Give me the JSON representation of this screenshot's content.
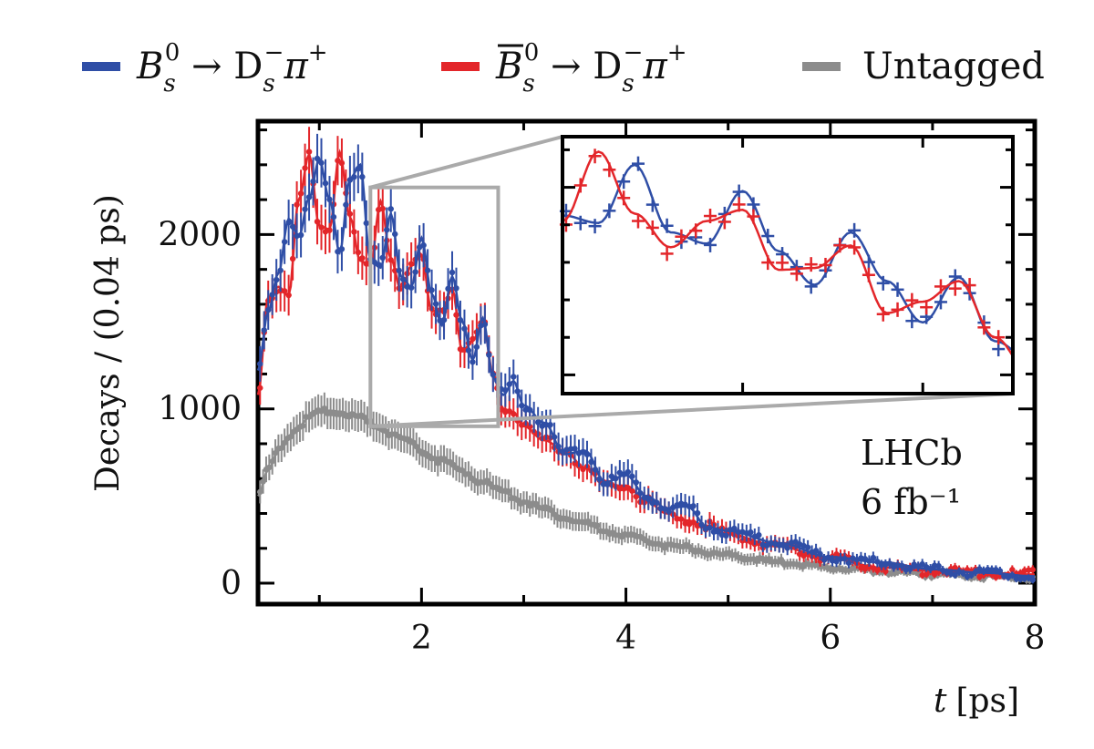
{
  "chart_data": {
    "type": "scatter",
    "xlabel_var": "t",
    "xlabel_unit": "[ps]",
    "ylabel": "Decays / (0.04 ps)",
    "xlim": [
      0.4,
      8
    ],
    "ylim": [
      -120,
      2650
    ],
    "x_ticks": [
      2,
      4,
      6,
      8
    ],
    "y_ticks": [
      0,
      1000,
      2000
    ],
    "grid": false,
    "legend_placement": "top",
    "legend": [
      {
        "key": "bs",
        "label": "B_s^0 → D_s^- π^+",
        "color": "#2F4EA6"
      },
      {
        "key": "bsbar",
        "label": "B̄_s^0 → D_s^- π^+",
        "color": "#E3262A"
      },
      {
        "key": "untagged",
        "label": "Untagged",
        "color": "#8C8C8C"
      }
    ],
    "annotations": {
      "experiment": "LHCb",
      "luminosity": "6 fb⁻¹"
    },
    "inset": {
      "zoom_region": {
        "x": [
          1.5,
          2.75
        ],
        "y": [
          900,
          2270
        ]
      },
      "series": [
        "bs",
        "bsbar"
      ]
    },
    "series": [
      {
        "key": "bs",
        "color": "#2F4EA6",
        "kind": "oscillating",
        "x": [
          0.4,
          0.5,
          0.6,
          0.7,
          0.8,
          0.9,
          1.0,
          1.1,
          1.2,
          1.3,
          1.4,
          1.5,
          1.6,
          1.7,
          1.8,
          1.9,
          2.0,
          2.1,
          2.2,
          2.3,
          2.4,
          2.5,
          2.6,
          2.7,
          2.8,
          2.9,
          3.0,
          3.2,
          3.4,
          3.6,
          3.8,
          4.0,
          4.2,
          4.4,
          4.6,
          4.8,
          5.0,
          5.5,
          6.0,
          6.5,
          7.0,
          7.5,
          8.0
        ],
        "y": [
          1220,
          1560,
          1780,
          2090,
          1990,
          2210,
          2430,
          2200,
          1900,
          2320,
          2400,
          1850,
          1810,
          2120,
          1760,
          1700,
          1980,
          1660,
          1480,
          1760,
          1500,
          1280,
          1520,
          1180,
          1080,
          1160,
          1020,
          920,
          740,
          760,
          580,
          620,
          500,
          430,
          440,
          320,
          300,
          230,
          150,
          120,
          80,
          60,
          40
        ]
      },
      {
        "key": "bsbar",
        "color": "#E3262A",
        "kind": "oscillating",
        "x": [
          0.4,
          0.5,
          0.6,
          0.7,
          0.8,
          0.9,
          1.0,
          1.1,
          1.2,
          1.3,
          1.4,
          1.5,
          1.6,
          1.7,
          1.8,
          1.9,
          2.0,
          2.1,
          2.2,
          2.3,
          2.4,
          2.5,
          2.6,
          2.7,
          2.8,
          2.9,
          3.0,
          3.2,
          3.4,
          3.6,
          3.8,
          4.0,
          4.2,
          4.4,
          4.6,
          4.8,
          5.0,
          5.5,
          6.0,
          6.5,
          7.0,
          7.5,
          8.0
        ],
        "y": [
          1080,
          1640,
          1700,
          1650,
          2200,
          2460,
          2050,
          2030,
          2470,
          2100,
          1850,
          1820,
          2190,
          1860,
          1680,
          1820,
          1880,
          1560,
          1570,
          1690,
          1330,
          1390,
          1500,
          1200,
          1000,
          980,
          900,
          820,
          760,
          660,
          560,
          560,
          470,
          400,
          360,
          330,
          280,
          210,
          140,
          90,
          70,
          60,
          50
        ]
      },
      {
        "key": "untagged",
        "color": "#8C8C8C",
        "kind": "smooth",
        "x": [
          0.4,
          0.5,
          0.6,
          0.7,
          0.8,
          0.9,
          1.0,
          1.1,
          1.2,
          1.3,
          1.4,
          1.5,
          1.6,
          1.7,
          1.8,
          1.9,
          2.0,
          2.2,
          2.4,
          2.6,
          2.8,
          3.0,
          3.2,
          3.4,
          3.6,
          3.8,
          4.0,
          4.5,
          5.0,
          5.5,
          6.0,
          6.5,
          7.0,
          7.5,
          8.0
        ],
        "y": [
          500,
          650,
          760,
          840,
          900,
          950,
          980,
          990,
          985,
          970,
          950,
          920,
          890,
          860,
          830,
          800,
          760,
          700,
          640,
          580,
          520,
          470,
          420,
          380,
          340,
          300,
          270,
          210,
          160,
          120,
          90,
          70,
          50,
          40,
          30
        ]
      }
    ]
  }
}
